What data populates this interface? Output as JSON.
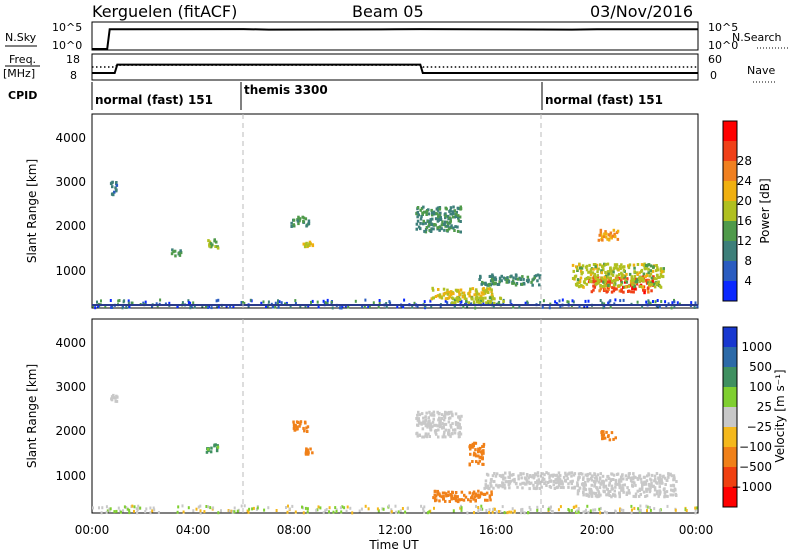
{
  "header": {
    "station": "Kerguelen (fitACF)",
    "beam": "Beam 05",
    "date": "03/Nov/2016"
  },
  "sky_panel": {
    "left_label": "N.Sky",
    "left_ticks": [
      "10^5",
      "10^0"
    ],
    "right_ticks": [
      "10^5",
      "10^0"
    ],
    "right_label": "N.Search"
  },
  "freq_panel": {
    "left_label_1": "Freq.",
    "left_label_2": "[MHz]",
    "left_ticks": [
      "18",
      "8"
    ],
    "right_ticks": [
      "60",
      "0"
    ],
    "right_label": "Nave"
  },
  "cpid": {
    "label": "CPID",
    "segments": [
      "normal (fast) 151",
      "themis 3300",
      "normal (fast) 151"
    ]
  },
  "x_axis": {
    "ticks": [
      "00:00",
      "04:00",
      "08:00",
      "12:00",
      "16:00",
      "20:00",
      "00:00"
    ],
    "label": "Time UT"
  },
  "chart_data": [
    {
      "type": "line",
      "x_hours": [
        0,
        0.6,
        0.7,
        6,
        7,
        12,
        13,
        19,
        20,
        24
      ],
      "series": [
        {
          "values": [
            0.0,
            0.0,
            0.82,
            0.83,
            0.81,
            0.82,
            0.83,
            0.81,
            0.82,
            0.82
          ]
        }
      ],
      "xlim": [
        0,
        24
      ],
      "yscale": "log"
    },
    {
      "type": "line",
      "x_hours": [
        0,
        0.9,
        1.0,
        13.0,
        13.1,
        24
      ],
      "series": [
        {
          "values": [
            10.5,
            10.5,
            14.0,
            14.0,
            10.5,
            10.5
          ],
          "style": "solid"
        },
        {
          "values": [
            13.0,
            13.0,
            13.8,
            13.8,
            13.0,
            13.0
          ],
          "style": "dotted"
        }
      ],
      "xlim": [
        0,
        24
      ],
      "ylim": [
        8,
        18
      ]
    },
    {
      "type": "heatmap",
      "ylabel": "Slant Range [km]",
      "yticks": [
        "1000",
        "2000",
        "3000",
        "4000"
      ],
      "xlim": [
        0,
        24
      ],
      "ylim": [
        180,
        4500
      ],
      "colorbar": {
        "label": "Power [dB]",
        "ticks": [
          "4",
          "8",
          "12",
          "16",
          "20",
          "24",
          "28"
        ],
        "colors": [
          "#0a28ff",
          "#2a5cc0",
          "#3d7f7a",
          "#4f9a4a",
          "#b0c020",
          "#f0b010",
          "#f08020",
          "#f04018",
          "#ff0000"
        ]
      },
      "clusters": [
        {
          "t": 0.85,
          "r": 2850,
          "dt": 0.15,
          "dr": 150,
          "v": 8
        },
        {
          "t": 3.3,
          "r": 1400,
          "dt": 0.2,
          "dr": 80,
          "v": 10
        },
        {
          "t": 4.7,
          "r": 1600,
          "dt": 0.25,
          "dr": 100,
          "v": 14
        },
        {
          "t": 8.2,
          "r": 2100,
          "dt": 0.35,
          "dr": 120,
          "v": 10
        },
        {
          "t": 8.5,
          "r": 1600,
          "dt": 0.2,
          "dr": 60,
          "v": 18
        },
        {
          "t": 13.7,
          "r": 2150,
          "dt": 0.9,
          "dr": 280,
          "v": 9
        },
        {
          "t": 14.6,
          "r": 500,
          "dt": 1.2,
          "dr": 120,
          "v": 18
        },
        {
          "t": 15.3,
          "r": 350,
          "dt": 1.1,
          "dr": 80,
          "v": 15
        },
        {
          "t": 16.5,
          "r": 800,
          "dt": 1.2,
          "dr": 120,
          "v": 9
        },
        {
          "t": 20.9,
          "r": 700,
          "dt": 1.3,
          "dr": 180,
          "v": 28
        },
        {
          "t": 20.8,
          "r": 900,
          "dt": 1.8,
          "dr": 260,
          "v": 16
        },
        {
          "t": 20.4,
          "r": 1800,
          "dt": 0.4,
          "dr": 120,
          "v": 22
        }
      ]
    },
    {
      "type": "heatmap",
      "ylabel": "Slant Range [km]",
      "yticks": [
        "1000",
        "2000",
        "3000",
        "4000"
      ],
      "xlim": [
        0,
        24
      ],
      "ylim": [
        180,
        4500
      ],
      "colorbar": {
        "label": "Velocity  [m s⁻¹]",
        "ticks": [
          "1000",
          "500",
          "100",
          "25",
          "−25",
          "−100",
          "−500",
          "−1000"
        ],
        "colors": [
          "#1838d0",
          "#2c6aa8",
          "#3f9060",
          "#7fcf30",
          "#c8c8c8",
          "#f4b81c",
          "#f08018",
          "#f04010",
          "#ff0000"
        ]
      },
      "clusters": [
        {
          "t": 0.85,
          "r": 2750,
          "dt": 0.15,
          "dr": 120,
          "v": 0
        },
        {
          "t": 4.7,
          "r": 1600,
          "dt": 0.25,
          "dr": 100,
          "v": 150
        },
        {
          "t": 8.2,
          "r": 2100,
          "dt": 0.35,
          "dr": 120,
          "v": -400
        },
        {
          "t": 8.6,
          "r": 1550,
          "dt": 0.2,
          "dr": 60,
          "v": -400
        },
        {
          "t": 13.7,
          "r": 2150,
          "dt": 0.9,
          "dr": 280,
          "v": 0
        },
        {
          "t": 14.6,
          "r": 550,
          "dt": 1.2,
          "dr": 120,
          "v": -300
        },
        {
          "t": 15.2,
          "r": 1500,
          "dt": 0.3,
          "dr": 250,
          "v": -200
        },
        {
          "t": 17.3,
          "r": 900,
          "dt": 1.8,
          "dr": 180,
          "v": 0
        },
        {
          "t": 21.1,
          "r": 800,
          "dt": 2.0,
          "dr": 260,
          "v": 0
        },
        {
          "t": 20.4,
          "r": 1900,
          "dt": 0.3,
          "dr": 100,
          "v": -200
        }
      ]
    }
  ]
}
